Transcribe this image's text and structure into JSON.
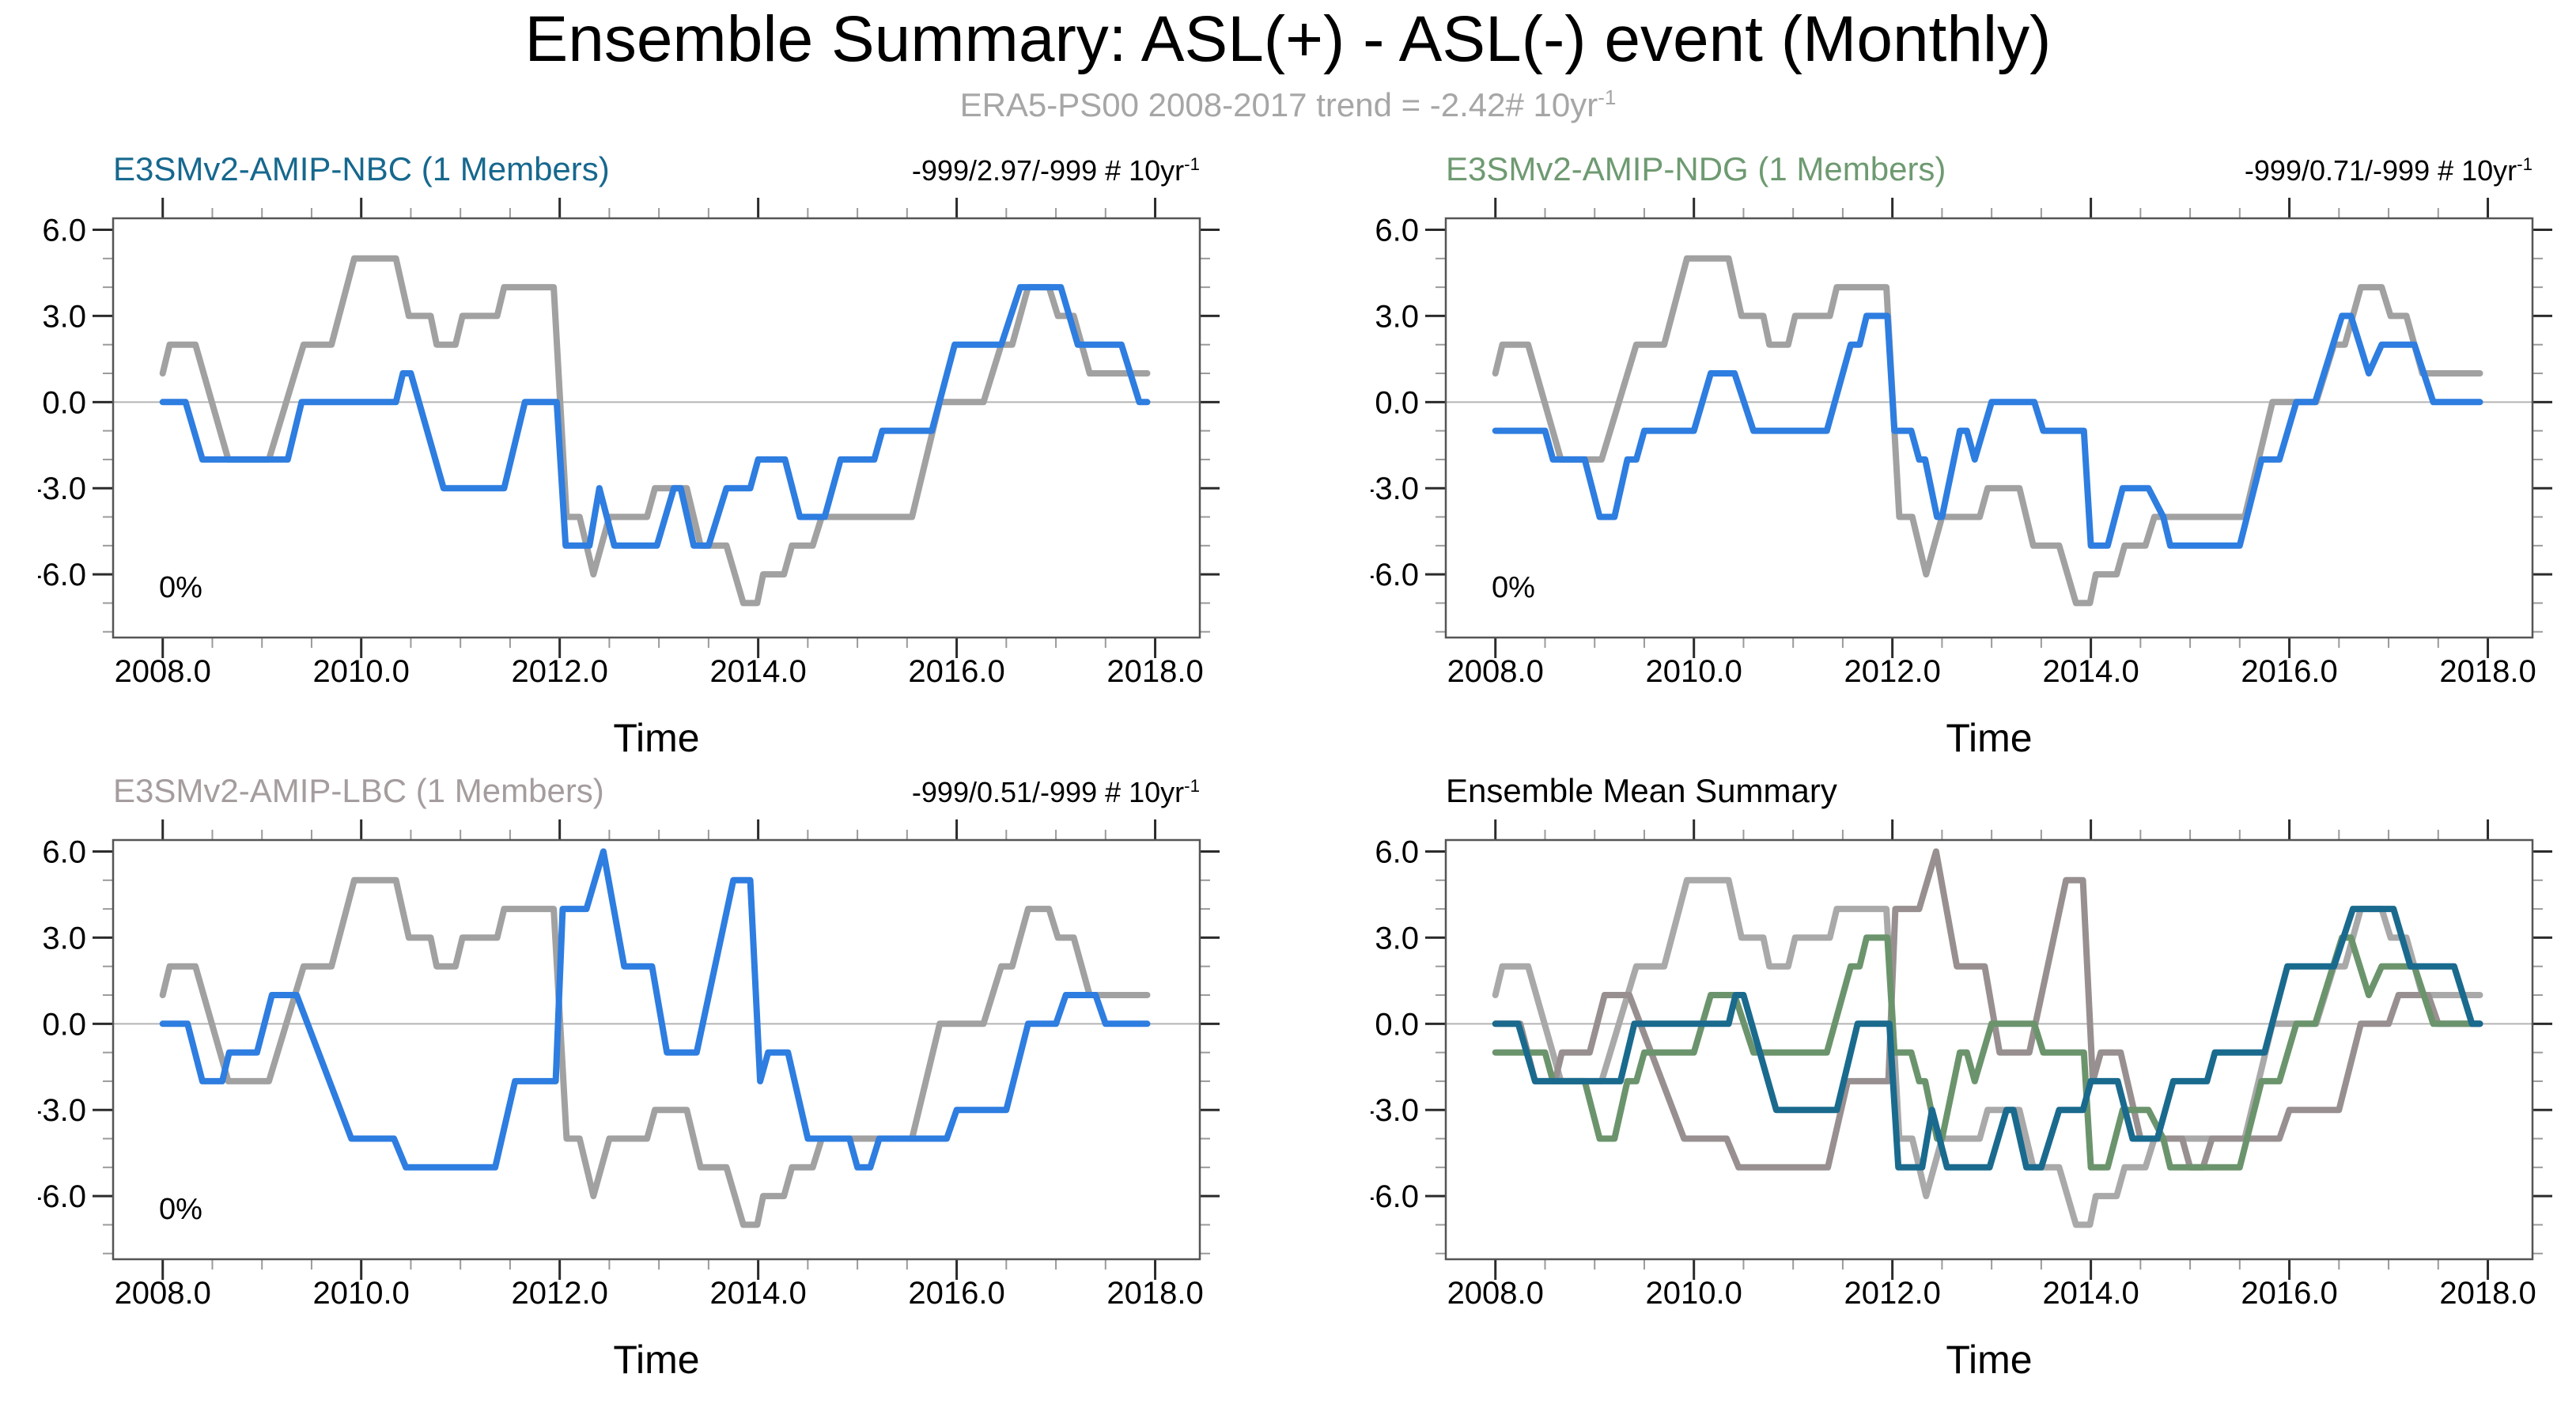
{
  "page": {
    "title": "Ensemble Summary: ASL(+) - ASL(-) event (Monthly)",
    "subtitle": "ERA5-PS00 2008-2017 trend = -2.42# 10yr",
    "subtitle_sup": "-1",
    "subtitle_color": "#a6a6a6",
    "background": "#ffffff"
  },
  "chart_data": {
    "type": "line",
    "title": "Ensemble Summary: ASL(+) - ASL(-) event (Monthly)",
    "subtitle": "ERA5-PS00 2008-2017 trend = -2.42# 10yr-1",
    "axes": {
      "x_label": "Time",
      "x_domain": [
        2007.5,
        2018.45
      ],
      "x_major_ticks": [
        2008,
        2010,
        2012,
        2014,
        2016,
        2018
      ],
      "x_tick_labels": [
        "2008.0",
        "2010.0",
        "2012.0",
        "2014.0",
        "2016.0",
        "2018.0"
      ],
      "x_minor_ticks": [
        2008.5,
        2009,
        2009.5,
        2010.5,
        2011,
        2011.5,
        2012.5,
        2013,
        2013.5,
        2014.5,
        2015,
        2015.5,
        2016.5,
        2017,
        2017.5,
        2018.45
      ],
      "y_domain": [
        -8.2,
        6.4
      ],
      "y_major_ticks": [
        -6,
        -3,
        0,
        3,
        6
      ],
      "y_tick_labels": [
        "-6.0",
        "-3.0",
        "0.0",
        "3.0",
        "6.0"
      ],
      "y_minor_ticks": [
        -8,
        -7,
        -5,
        -4,
        -2,
        -1,
        1,
        2,
        4,
        5
      ],
      "zero_line": 0,
      "grid": false,
      "legend": "none"
    },
    "style": {
      "box_color": "#555555",
      "major_tick_color": "#2b2b2b",
      "minor_tick_color": "#9b9b9b",
      "zero_line_color": "#b4b4b4",
      "line_width": 8,
      "tick_label_size": 40,
      "annotation_size": 38
    },
    "series": {
      "era5": {
        "name": "ERA5-PS00",
        "points": [
          [
            2008.0,
            1
          ],
          [
            2008.07,
            2
          ],
          [
            2008.33,
            2
          ],
          [
            2008.66,
            -2
          ],
          [
            2009.07,
            -2
          ],
          [
            2009.42,
            2
          ],
          [
            2009.7,
            2
          ],
          [
            2009.93,
            5
          ],
          [
            2010.35,
            5
          ],
          [
            2010.48,
            3
          ],
          [
            2010.7,
            3
          ],
          [
            2010.76,
            2
          ],
          [
            2010.95,
            2
          ],
          [
            2011.02,
            3
          ],
          [
            2011.37,
            3
          ],
          [
            2011.44,
            4
          ],
          [
            2011.94,
            4
          ],
          [
            2012.07,
            -4
          ],
          [
            2012.2,
            -4
          ],
          [
            2012.34,
            -6
          ],
          [
            2012.5,
            -4
          ],
          [
            2012.88,
            -4
          ],
          [
            2012.96,
            -3
          ],
          [
            2013.28,
            -3
          ],
          [
            2013.42,
            -5
          ],
          [
            2013.68,
            -5
          ],
          [
            2013.85,
            -7
          ],
          [
            2013.99,
            -7
          ],
          [
            2014.05,
            -6
          ],
          [
            2014.26,
            -6
          ],
          [
            2014.34,
            -5
          ],
          [
            2014.55,
            -5
          ],
          [
            2014.64,
            -4
          ],
          [
            2015.55,
            -4
          ],
          [
            2015.83,
            0
          ],
          [
            2016.27,
            0
          ],
          [
            2016.45,
            2
          ],
          [
            2016.56,
            2
          ],
          [
            2016.72,
            4
          ],
          [
            2016.93,
            4
          ],
          [
            2017.02,
            3
          ],
          [
            2017.18,
            3
          ],
          [
            2017.34,
            1
          ],
          [
            2017.92,
            1
          ]
        ]
      },
      "nbc": {
        "name": "E3SMv2-AMIP-NBC",
        "points": [
          [
            2008.0,
            0
          ],
          [
            2008.23,
            0
          ],
          [
            2008.4,
            -2
          ],
          [
            2009.26,
            -2
          ],
          [
            2009.4,
            0
          ],
          [
            2010.35,
            0
          ],
          [
            2010.42,
            1
          ],
          [
            2010.5,
            1
          ],
          [
            2010.83,
            -3
          ],
          [
            2011.44,
            -3
          ],
          [
            2011.65,
            0
          ],
          [
            2011.97,
            0
          ],
          [
            2012.06,
            -5
          ],
          [
            2012.3,
            -5
          ],
          [
            2012.4,
            -3
          ],
          [
            2012.55,
            -5
          ],
          [
            2012.98,
            -5
          ],
          [
            2013.15,
            -3
          ],
          [
            2013.22,
            -3
          ],
          [
            2013.35,
            -5
          ],
          [
            2013.5,
            -5
          ],
          [
            2013.68,
            -3
          ],
          [
            2013.92,
            -3
          ],
          [
            2014.0,
            -2
          ],
          [
            2014.27,
            -2
          ],
          [
            2014.42,
            -4
          ],
          [
            2014.67,
            -4
          ],
          [
            2014.83,
            -2
          ],
          [
            2015.17,
            -2
          ],
          [
            2015.25,
            -1
          ],
          [
            2015.75,
            -1
          ],
          [
            2015.98,
            2
          ],
          [
            2016.45,
            2
          ],
          [
            2016.64,
            4
          ],
          [
            2017.05,
            4
          ],
          [
            2017.22,
            2
          ],
          [
            2017.66,
            2
          ],
          [
            2017.84,
            0
          ],
          [
            2017.92,
            0
          ]
        ]
      },
      "ndg": {
        "name": "E3SMv2-AMIP-NDG",
        "points": [
          [
            2008.0,
            -1
          ],
          [
            2008.5,
            -1
          ],
          [
            2008.58,
            -2
          ],
          [
            2008.9,
            -2
          ],
          [
            2009.05,
            -4
          ],
          [
            2009.2,
            -4
          ],
          [
            2009.33,
            -2
          ],
          [
            2009.42,
            -2
          ],
          [
            2009.5,
            -1
          ],
          [
            2010.0,
            -1
          ],
          [
            2010.17,
            1
          ],
          [
            2010.41,
            1
          ],
          [
            2010.6,
            -1
          ],
          [
            2011.34,
            -1
          ],
          [
            2011.58,
            2
          ],
          [
            2011.67,
            2
          ],
          [
            2011.74,
            3
          ],
          [
            2011.95,
            3
          ],
          [
            2012.02,
            -1
          ],
          [
            2012.19,
            -1
          ],
          [
            2012.27,
            -2
          ],
          [
            2012.33,
            -2
          ],
          [
            2012.45,
            -4
          ],
          [
            2012.5,
            -4
          ],
          [
            2012.68,
            -1
          ],
          [
            2012.75,
            -1
          ],
          [
            2012.83,
            -2
          ],
          [
            2013.0,
            0
          ],
          [
            2013.43,
            0
          ],
          [
            2013.52,
            -1
          ],
          [
            2013.93,
            -1
          ],
          [
            2014.0,
            -5
          ],
          [
            2014.17,
            -5
          ],
          [
            2014.32,
            -3
          ],
          [
            2014.58,
            -3
          ],
          [
            2014.73,
            -4
          ],
          [
            2014.8,
            -5
          ],
          [
            2015.5,
            -5
          ],
          [
            2015.72,
            -2
          ],
          [
            2015.9,
            -2
          ],
          [
            2016.07,
            0
          ],
          [
            2016.26,
            0
          ],
          [
            2016.53,
            3
          ],
          [
            2016.62,
            3
          ],
          [
            2016.8,
            1
          ],
          [
            2016.93,
            2
          ],
          [
            2017.26,
            2
          ],
          [
            2017.45,
            0
          ],
          [
            2017.92,
            0
          ]
        ]
      },
      "lbc": {
        "name": "E3SMv2-AMIP-LBC",
        "points": [
          [
            2008.0,
            0
          ],
          [
            2008.25,
            0
          ],
          [
            2008.4,
            -2
          ],
          [
            2008.6,
            -2
          ],
          [
            2008.67,
            -1
          ],
          [
            2008.95,
            -1
          ],
          [
            2009.1,
            1
          ],
          [
            2009.35,
            1
          ],
          [
            2009.9,
            -4
          ],
          [
            2010.33,
            -4
          ],
          [
            2010.45,
            -5
          ],
          [
            2011.35,
            -5
          ],
          [
            2011.55,
            -2
          ],
          [
            2011.96,
            -2
          ],
          [
            2012.03,
            4
          ],
          [
            2012.27,
            4
          ],
          [
            2012.44,
            6
          ],
          [
            2012.65,
            2
          ],
          [
            2012.93,
            2
          ],
          [
            2013.08,
            -1
          ],
          [
            2013.38,
            -1
          ],
          [
            2013.75,
            5
          ],
          [
            2013.92,
            5
          ],
          [
            2014.02,
            -2
          ],
          [
            2014.1,
            -1
          ],
          [
            2014.3,
            -1
          ],
          [
            2014.5,
            -4
          ],
          [
            2014.92,
            -4
          ],
          [
            2015.0,
            -5
          ],
          [
            2015.13,
            -5
          ],
          [
            2015.22,
            -4
          ],
          [
            2015.9,
            -4
          ],
          [
            2016.0,
            -3
          ],
          [
            2016.5,
            -3
          ],
          [
            2016.72,
            0
          ],
          [
            2017.0,
            0
          ],
          [
            2017.1,
            1
          ],
          [
            2017.4,
            1
          ],
          [
            2017.5,
            0
          ],
          [
            2017.92,
            0
          ]
        ]
      }
    },
    "panels": [
      {
        "title": "E3SMv2-AMIP-NBC (1 Members)",
        "title_color": "#16688e",
        "trend": "-999/2.97/-999 # 10yr",
        "trend_sup": "-1",
        "annotation": "0%",
        "series": [
          {
            "ref": "era5",
            "color": "#a1a1a1"
          },
          {
            "ref": "nbc",
            "color": "#2e7de0"
          }
        ]
      },
      {
        "title": "E3SMv2-AMIP-NDG (1 Members)",
        "title_color": "#6e9a71",
        "trend": "-999/0.71/-999 # 10yr",
        "trend_sup": "-1",
        "annotation": "0%",
        "series": [
          {
            "ref": "era5",
            "color": "#a1a1a1"
          },
          {
            "ref": "ndg",
            "color": "#2e7de0"
          }
        ]
      },
      {
        "title": "E3SMv2-AMIP-LBC (1 Members)",
        "title_color": "#a59d9d",
        "trend": "-999/0.51/-999 # 10yr",
        "trend_sup": "-1",
        "annotation": "0%",
        "series": [
          {
            "ref": "era5",
            "color": "#a1a1a1"
          },
          {
            "ref": "lbc",
            "color": "#2e7de0"
          }
        ]
      },
      {
        "title": "Ensemble Mean Summary",
        "title_color": "#000000",
        "trend": "",
        "trend_sup": "",
        "annotation": "",
        "series": [
          {
            "ref": "era5",
            "color": "#a9a9a9"
          },
          {
            "ref": "lbc",
            "color": "#989090"
          },
          {
            "ref": "ndg",
            "color": "#6b946d"
          },
          {
            "ref": "nbc",
            "color": "#1a6a8e"
          }
        ]
      }
    ]
  }
}
